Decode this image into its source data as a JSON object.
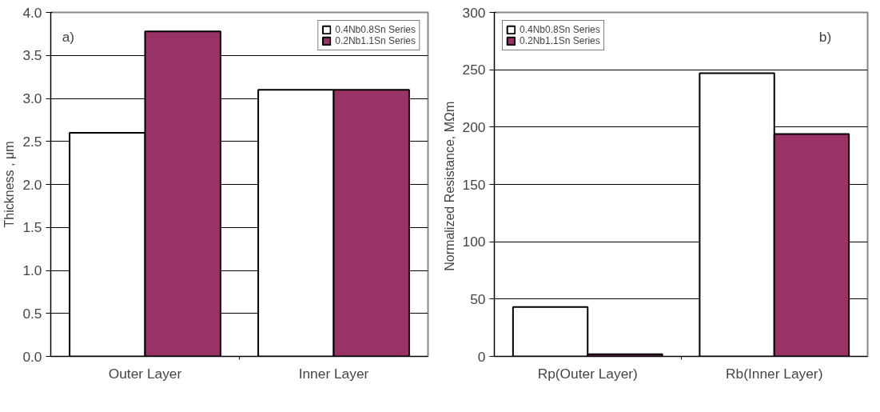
{
  "chart_data": [
    {
      "type": "bar",
      "categories": [
        "Outer Layer",
        "Inner Layer"
      ],
      "ylabel": "Thickness , μm",
      "ylim": [
        0,
        4.0
      ],
      "yticks": [
        {
          "value": 0,
          "label": "0.0"
        },
        0.5,
        {
          "value": 1,
          "label": "1.0"
        },
        1.5,
        {
          "value": 2,
          "label": "2.0"
        },
        2.5,
        {
          "value": 3,
          "label": "3.0"
        },
        3.5,
        {
          "value": 4,
          "label": "4.0"
        }
      ],
      "grid": "y",
      "legend": "top right",
      "annotations": [
        "a)"
      ],
      "series": [
        {
          "name": "0.4Nb0.8Sn Series",
          "color": "#ffffff",
          "values": [
            2.6,
            3.1
          ]
        },
        {
          "name": "0.2Nb1.1Sn Series",
          "color": "#993366",
          "values": [
            3.78,
            3.1
          ]
        }
      ]
    },
    {
      "type": "bar",
      "categories": [
        "Rp(Outer Layer)",
        "Rb(Inner Layer)"
      ],
      "ylabel": "Normalized  Resistance, MΩm",
      "ylim": [
        0,
        300
      ],
      "yticks": [
        0,
        50,
        100,
        150,
        200,
        250,
        300
      ],
      "grid": "y",
      "legend": "top left",
      "annotations": [
        "b)"
      ],
      "series": [
        {
          "name": "0.4Nb0.8Sn Series",
          "color": "#ffffff",
          "values": [
            43,
            247
          ]
        },
        {
          "name": "0.2Nb1.1Sn Series",
          "color": "#993366",
          "values": [
            2,
            194
          ]
        }
      ]
    }
  ]
}
